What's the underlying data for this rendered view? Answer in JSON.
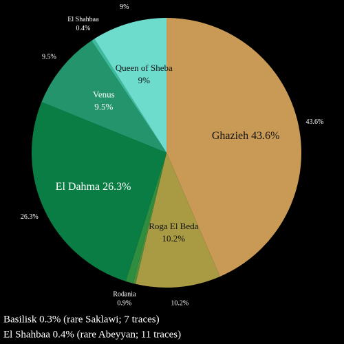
{
  "chart_data": {
    "type": "pie",
    "categories": [
      "Ghazieh",
      "Roga El Beda",
      null,
      "Rodania",
      "El Dahma",
      "Venus",
      "El Shahbaa",
      "Queen of Sheba"
    ],
    "values": [
      43.6,
      10.2,
      0.3,
      0.9,
      26.3,
      9.5,
      0.4,
      9
    ],
    "value_labels": [
      "43.6%",
      "10.2%",
      null,
      "0.9%",
      "26.3%",
      "9.5%",
      "0.4%",
      "9%"
    ],
    "colors": [
      "#c99a55",
      "#a99b44",
      "#4b8f3c",
      "#2f8d3f",
      "#097d44",
      "#23946b",
      "#3cbb9c",
      "#6ddccd"
    ],
    "notes": [
      "Basilisk 0.3% (rare Saklawi; 7 traces)",
      "El Shahbaa 0.4% (rare Abeyyan; 11 traces)"
    ]
  }
}
